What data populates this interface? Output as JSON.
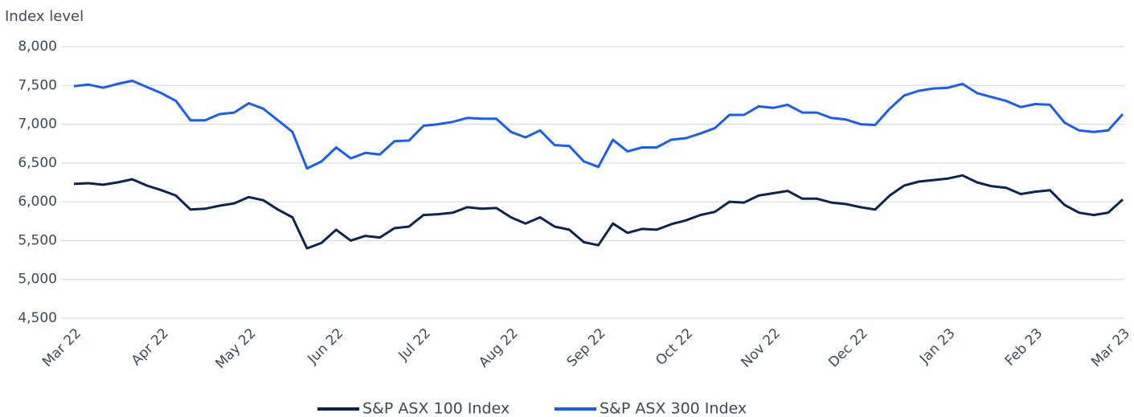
{
  "chart_data": {
    "type": "line",
    "y_axis_label": "Index level",
    "categories": [
      "Mar 22",
      null,
      null,
      null,
      null,
      null,
      "Apr 22",
      null,
      null,
      null,
      null,
      null,
      "May 22",
      null,
      null,
      null,
      null,
      null,
      "Jun 22",
      null,
      null,
      null,
      null,
      null,
      "Jul 22",
      null,
      null,
      null,
      null,
      null,
      "Aug 22",
      null,
      null,
      null,
      null,
      null,
      "Sep 22",
      null,
      null,
      null,
      null,
      null,
      "Oct 22",
      null,
      null,
      null,
      null,
      null,
      "Nov 22",
      null,
      null,
      null,
      null,
      null,
      "Dec 22",
      null,
      null,
      null,
      null,
      null,
      "Jan 23",
      null,
      null,
      null,
      null,
      null,
      "Feb 23",
      null,
      null,
      null,
      null,
      null,
      "Mar 23"
    ],
    "series": [
      {
        "name": "S&P ASX 100 Index",
        "color": "#0c2550",
        "values": [
          6230,
          6240,
          6220,
          6250,
          6290,
          6210,
          6150,
          6080,
          5900,
          5910,
          5950,
          5980,
          6060,
          6020,
          5900,
          5800,
          5400,
          5470,
          5640,
          5500,
          5560,
          5540,
          5660,
          5680,
          5830,
          5840,
          5860,
          5930,
          5910,
          5920,
          5800,
          5720,
          5800,
          5680,
          5640,
          5480,
          5440,
          5720,
          5600,
          5650,
          5640,
          5710,
          5760,
          5830,
          5870,
          6000,
          5990,
          6080,
          6110,
          6140,
          6040,
          6040,
          5990,
          5970,
          5930,
          5900,
          6080,
          6210,
          6260,
          6280,
          6300,
          6340,
          6250,
          6200,
          6180,
          6100,
          6130,
          6150,
          5960,
          5860,
          5830,
          5860,
          6030
        ]
      },
      {
        "name": "S&P ASX 300 Index",
        "color": "#1a5cf5",
        "values": [
          7490,
          7510,
          7470,
          7520,
          7560,
          7480,
          7400,
          7300,
          7050,
          7050,
          7130,
          7150,
          7270,
          7200,
          7050,
          6900,
          6430,
          6520,
          6700,
          6560,
          6630,
          6610,
          6780,
          6790,
          6980,
          7000,
          7030,
          7080,
          7070,
          7070,
          6900,
          6830,
          6920,
          6730,
          6720,
          6520,
          6450,
          6800,
          6650,
          6700,
          6700,
          6800,
          6820,
          6880,
          6950,
          7120,
          7120,
          7230,
          7210,
          7250,
          7150,
          7150,
          7080,
          7060,
          7000,
          6990,
          7200,
          7370,
          7430,
          7460,
          7470,
          7520,
          7400,
          7350,
          7300,
          7220,
          7260,
          7250,
          7020,
          6920,
          6900,
          6920,
          7130
        ]
      }
    ],
    "ylim": [
      4500,
      8000
    ],
    "yticks": [
      {
        "value": 4500,
        "label": "4,500"
      },
      {
        "value": 5000,
        "label": "5,000"
      },
      {
        "value": 5500,
        "label": "5,500"
      },
      {
        "value": 6000,
        "label": "6,000"
      },
      {
        "value": 6500,
        "label": "6,500"
      },
      {
        "value": 7000,
        "label": "7,000"
      },
      {
        "value": 7500,
        "label": "7,500"
      },
      {
        "value": 8000,
        "label": "8,000"
      }
    ],
    "grid": true,
    "legend": "bottom"
  }
}
